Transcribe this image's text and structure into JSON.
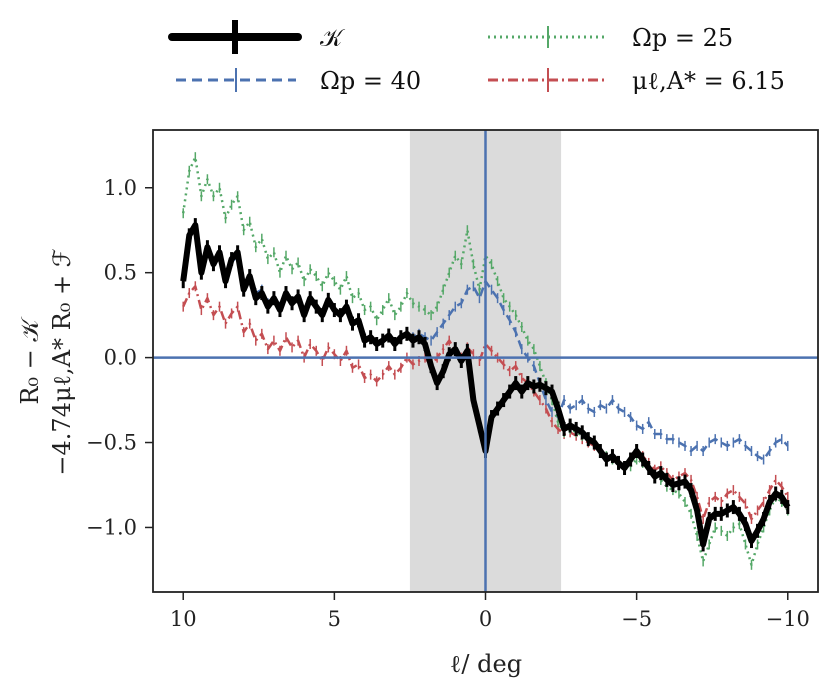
{
  "chart_data": {
    "type": "line",
    "xlabel": "ℓ/ deg",
    "ylabel_line1": "R₀ − 𝒦",
    "ylabel_line2": "−4.74μℓ,A* R₀ + ℱ",
    "xlim": [
      11,
      -11
    ],
    "ylim": [
      -1.38,
      1.34
    ],
    "x_ticks": [
      10,
      5,
      0,
      -5,
      -10
    ],
    "x_tick_labels": [
      "10",
      "5",
      "0",
      "−5",
      "−10"
    ],
    "y_ticks": [
      1.0,
      0.5,
      0.0,
      -0.5,
      -1.0
    ],
    "y_tick_labels": [
      "1.0",
      "0.5",
      "0.0",
      "−0.5",
      "−1.0"
    ],
    "shaded_region": [
      2.5,
      -2.5
    ],
    "reference_lines": {
      "y": 0.0,
      "x": 0.0
    },
    "legend": {
      "placement": "above-plot",
      "entries": [
        {
          "label": "𝒦",
          "series": "K"
        },
        {
          "label": "Ωp = 25",
          "series": "omega25"
        },
        {
          "label": "Ωp = 40",
          "series": "omega40"
        },
        {
          "label": "μℓ,A* = 6.15",
          "series": "mu615"
        }
      ]
    },
    "series": [
      {
        "name": "K",
        "label": "𝒦",
        "color": "#000000",
        "style": "solid",
        "x": [
          10,
          9.8,
          9.6,
          9.4,
          9.2,
          9.0,
          8.8,
          8.6,
          8.4,
          8.2,
          8.0,
          7.8,
          7.6,
          7.4,
          7.2,
          7.0,
          6.8,
          6.6,
          6.4,
          6.2,
          6.0,
          5.8,
          5.6,
          5.4,
          5.2,
          5.0,
          4.8,
          4.6,
          4.4,
          4.2,
          4.0,
          3.8,
          3.6,
          3.4,
          3.2,
          3.0,
          2.8,
          2.6,
          2.4,
          2.2,
          2.0,
          1.8,
          1.6,
          1.4,
          1.2,
          1.0,
          0.8,
          0.6,
          0.4,
          0.2,
          0.0,
          -0.2,
          -0.4,
          -0.6,
          -0.8,
          -1.0,
          -1.2,
          -1.4,
          -1.6,
          -1.8,
          -2.0,
          -2.2,
          -2.4,
          -2.6,
          -2.8,
          -3.0,
          -3.2,
          -3.4,
          -3.6,
          -3.8,
          -4.0,
          -4.2,
          -4.4,
          -4.6,
          -4.8,
          -5.0,
          -5.2,
          -5.4,
          -5.6,
          -5.8,
          -6.0,
          -6.2,
          -6.4,
          -6.6,
          -6.8,
          -7.0,
          -7.2,
          -7.4,
          -7.6,
          -7.8,
          -8.0,
          -8.2,
          -8.4,
          -8.6,
          -8.8,
          -9.0,
          -9.2,
          -9.4,
          -9.6,
          -9.8,
          -10.0
        ],
        "y": [
          0.45,
          0.72,
          0.78,
          0.5,
          0.65,
          0.55,
          0.62,
          0.45,
          0.58,
          0.62,
          0.4,
          0.48,
          0.35,
          0.38,
          0.3,
          0.35,
          0.28,
          0.38,
          0.32,
          0.36,
          0.25,
          0.35,
          0.3,
          0.25,
          0.34,
          0.28,
          0.25,
          0.3,
          0.2,
          0.22,
          0.1,
          0.12,
          0.08,
          0.1,
          0.13,
          0.08,
          0.12,
          0.14,
          0.1,
          0.12,
          0.08,
          -0.05,
          -0.15,
          -0.08,
          0.02,
          0.05,
          -0.02,
          0.04,
          -0.25,
          -0.4,
          -0.55,
          -0.35,
          -0.3,
          -0.25,
          -0.2,
          -0.15,
          -0.2,
          -0.15,
          -0.17,
          -0.16,
          -0.18,
          -0.2,
          -0.3,
          -0.42,
          -0.4,
          -0.42,
          -0.44,
          -0.48,
          -0.5,
          -0.55,
          -0.6,
          -0.58,
          -0.62,
          -0.65,
          -0.6,
          -0.55,
          -0.6,
          -0.65,
          -0.7,
          -0.68,
          -0.72,
          -0.75,
          -0.74,
          -0.73,
          -0.78,
          -0.9,
          -1.1,
          -0.95,
          -0.92,
          -0.92,
          -0.9,
          -0.88,
          -0.92,
          -0.98,
          -1.08,
          -1.02,
          -0.95,
          -0.85,
          -0.8,
          -0.82,
          -0.88
        ]
      },
      {
        "name": "omega25",
        "label": "Ωp = 25",
        "color": "#55a868",
        "style": "dotted",
        "x": [
          10,
          9.8,
          9.6,
          9.4,
          9.2,
          9.0,
          8.8,
          8.6,
          8.4,
          8.2,
          8.0,
          7.8,
          7.6,
          7.4,
          7.2,
          7.0,
          6.8,
          6.6,
          6.4,
          6.2,
          6.0,
          5.8,
          5.6,
          5.4,
          5.2,
          5.0,
          4.8,
          4.6,
          4.4,
          4.2,
          4.0,
          3.8,
          3.6,
          3.4,
          3.2,
          3.0,
          2.8,
          2.6,
          2.4,
          2.2,
          2.0,
          1.8,
          1.6,
          1.4,
          1.2,
          1.0,
          0.8,
          0.6,
          0.4,
          0.2,
          0.0,
          -0.2,
          -0.4,
          -0.6,
          -0.8,
          -1.0,
          -1.2,
          -1.4,
          -1.6,
          -1.8,
          -2.0,
          -2.2,
          -2.4,
          -2.6,
          -2.8,
          -3.0,
          -3.2,
          -3.4,
          -3.6,
          -3.8,
          -4.0,
          -4.2,
          -4.4,
          -4.6,
          -4.8,
          -5.0,
          -5.2,
          -5.4,
          -5.6,
          -5.8,
          -6.0,
          -6.2,
          -6.4,
          -6.6,
          -6.8,
          -7.0,
          -7.2,
          -7.4,
          -7.6,
          -7.8,
          -8.0,
          -8.2,
          -8.4,
          -8.6,
          -8.8,
          -9.0,
          -9.2,
          -9.4,
          -9.6,
          -9.8,
          -10.0
        ],
        "y": [
          0.85,
          1.1,
          1.18,
          0.95,
          1.05,
          0.95,
          1.0,
          0.82,
          0.9,
          0.95,
          0.75,
          0.8,
          0.65,
          0.7,
          0.58,
          0.62,
          0.5,
          0.6,
          0.52,
          0.56,
          0.45,
          0.52,
          0.48,
          0.42,
          0.5,
          0.45,
          0.4,
          0.48,
          0.35,
          0.38,
          0.28,
          0.3,
          0.22,
          0.28,
          0.35,
          0.25,
          0.3,
          0.38,
          0.32,
          0.3,
          0.28,
          0.25,
          0.3,
          0.4,
          0.5,
          0.6,
          0.55,
          0.75,
          0.55,
          0.4,
          0.6,
          0.55,
          0.45,
          0.35,
          0.3,
          0.25,
          0.18,
          0.1,
          0.05,
          -0.05,
          -0.15,
          -0.25,
          -0.38,
          -0.44,
          -0.42,
          -0.44,
          -0.46,
          -0.48,
          -0.5,
          -0.55,
          -0.58,
          -0.6,
          -0.62,
          -0.66,
          -0.64,
          -0.6,
          -0.62,
          -0.66,
          -0.7,
          -0.72,
          -0.76,
          -0.78,
          -0.8,
          -0.85,
          -0.92,
          -1.05,
          -1.2,
          -1.1,
          -1.0,
          -1.02,
          -1.05,
          -1.0,
          -0.98,
          -1.1,
          -1.22,
          -1.1,
          -1.0,
          -0.9,
          -0.82,
          -0.85,
          -0.9
        ]
      },
      {
        "name": "omega40",
        "label": "Ωp = 40",
        "color": "#4c72b0",
        "style": "dashed",
        "x": [
          10,
          9.8,
          9.6,
          9.4,
          9.2,
          9.0,
          8.8,
          8.6,
          8.4,
          8.2,
          8.0,
          7.8,
          7.6,
          7.4,
          7.2,
          7.0,
          6.8,
          6.6,
          6.4,
          6.2,
          6.0,
          5.8,
          5.6,
          5.4,
          5.2,
          5.0,
          4.8,
          4.6,
          4.4,
          4.2,
          4.0,
          3.8,
          3.6,
          3.4,
          3.2,
          3.0,
          2.8,
          2.6,
          2.4,
          2.2,
          2.0,
          1.8,
          1.6,
          1.4,
          1.2,
          1.0,
          0.8,
          0.6,
          0.4,
          0.2,
          0.0,
          -0.2,
          -0.4,
          -0.6,
          -0.8,
          -1.0,
          -1.2,
          -1.4,
          -1.6,
          -1.8,
          -2.0,
          -2.2,
          -2.4,
          -2.6,
          -2.8,
          -3.0,
          -3.2,
          -3.4,
          -3.6,
          -3.8,
          -4.0,
          -4.2,
          -4.4,
          -4.6,
          -4.8,
          -5.0,
          -5.2,
          -5.4,
          -5.6,
          -5.8,
          -6.0,
          -6.2,
          -6.4,
          -6.6,
          -6.8,
          -7.0,
          -7.2,
          -7.4,
          -7.6,
          -7.8,
          -8.0,
          -8.2,
          -8.4,
          -8.6,
          -8.8,
          -9.0,
          -9.2,
          -9.4,
          -9.6,
          -9.8,
          -10.0
        ],
        "y": [
          0.5,
          0.7,
          0.72,
          0.55,
          0.65,
          0.55,
          0.6,
          0.48,
          0.56,
          0.6,
          0.42,
          0.48,
          0.38,
          0.4,
          0.32,
          0.36,
          0.3,
          0.38,
          0.33,
          0.36,
          0.26,
          0.35,
          0.3,
          0.26,
          0.34,
          0.28,
          0.25,
          0.3,
          0.2,
          0.22,
          0.12,
          0.12,
          0.08,
          0.1,
          0.14,
          0.08,
          0.12,
          0.15,
          0.12,
          0.14,
          0.12,
          0.1,
          0.15,
          0.2,
          0.25,
          0.3,
          0.32,
          0.4,
          0.42,
          0.35,
          0.45,
          0.4,
          0.35,
          0.28,
          0.22,
          0.15,
          0.05,
          0.0,
          -0.05,
          -0.15,
          -0.25,
          -0.32,
          -0.35,
          -0.25,
          -0.3,
          -0.28,
          -0.25,
          -0.3,
          -0.32,
          -0.28,
          -0.3,
          -0.25,
          -0.3,
          -0.32,
          -0.35,
          -0.4,
          -0.42,
          -0.38,
          -0.45,
          -0.45,
          -0.48,
          -0.48,
          -0.5,
          -0.52,
          -0.55,
          -0.52,
          -0.55,
          -0.5,
          -0.48,
          -0.5,
          -0.52,
          -0.5,
          -0.48,
          -0.52,
          -0.55,
          -0.58,
          -0.6,
          -0.55,
          -0.5,
          -0.48,
          -0.52
        ]
      },
      {
        "name": "mu615",
        "label": "μℓ,A* = 6.15",
        "color": "#c44e52",
        "style": "dashdot",
        "x": [
          10,
          9.8,
          9.6,
          9.4,
          9.2,
          9.0,
          8.8,
          8.6,
          8.4,
          8.2,
          8.0,
          7.8,
          7.6,
          7.4,
          7.2,
          7.0,
          6.8,
          6.6,
          6.4,
          6.2,
          6.0,
          5.8,
          5.6,
          5.4,
          5.2,
          5.0,
          4.8,
          4.6,
          4.4,
          4.2,
          4.0,
          3.8,
          3.6,
          3.4,
          3.2,
          3.0,
          2.8,
          2.6,
          2.4,
          2.2,
          2.0,
          1.8,
          1.6,
          1.4,
          1.2,
          1.0,
          0.8,
          0.6,
          0.4,
          0.2,
          0.0,
          -0.2,
          -0.4,
          -0.6,
          -0.8,
          -1.0,
          -1.2,
          -1.4,
          -1.6,
          -1.8,
          -2.0,
          -2.2,
          -2.4,
          -2.6,
          -2.8,
          -3.0,
          -3.2,
          -3.4,
          -3.6,
          -3.8,
          -4.0,
          -4.2,
          -4.4,
          -4.6,
          -4.8,
          -5.0,
          -5.2,
          -5.4,
          -5.6,
          -5.8,
          -6.0,
          -6.2,
          -6.4,
          -6.6,
          -6.8,
          -7.0,
          -7.2,
          -7.4,
          -7.6,
          -7.8,
          -8.0,
          -8.2,
          -8.4,
          -8.6,
          -8.8,
          -9.0,
          -9.2,
          -9.4,
          -9.6,
          -9.8,
          -10.0
        ],
        "y": [
          0.3,
          0.38,
          0.42,
          0.28,
          0.35,
          0.25,
          0.3,
          0.2,
          0.26,
          0.3,
          0.15,
          0.2,
          0.1,
          0.14,
          0.05,
          0.1,
          0.04,
          0.12,
          0.06,
          0.1,
          0.0,
          0.08,
          0.04,
          -0.02,
          0.06,
          0.02,
          -0.02,
          0.04,
          -0.06,
          -0.04,
          -0.12,
          -0.1,
          -0.14,
          -0.1,
          -0.05,
          -0.1,
          -0.06,
          0.0,
          -0.04,
          -0.02,
          0.0,
          -0.05,
          0.0,
          0.05,
          0.1,
          0.04,
          0.0,
          0.06,
          0.02,
          -0.02,
          0.08,
          0.04,
          0.0,
          -0.04,
          -0.08,
          -0.05,
          -0.12,
          -0.15,
          -0.2,
          -0.25,
          -0.3,
          -0.38,
          -0.42,
          -0.45,
          -0.44,
          -0.46,
          -0.48,
          -0.5,
          -0.52,
          -0.55,
          -0.6,
          -0.58,
          -0.62,
          -0.65,
          -0.6,
          -0.55,
          -0.58,
          -0.62,
          -0.66,
          -0.64,
          -0.68,
          -0.72,
          -0.7,
          -0.68,
          -0.72,
          -0.82,
          -0.95,
          -0.85,
          -0.82,
          -0.85,
          -0.8,
          -0.78,
          -0.82,
          -0.86,
          -0.95,
          -0.9,
          -0.85,
          -0.78,
          -0.72,
          -0.76,
          -0.82
        ]
      }
    ]
  }
}
